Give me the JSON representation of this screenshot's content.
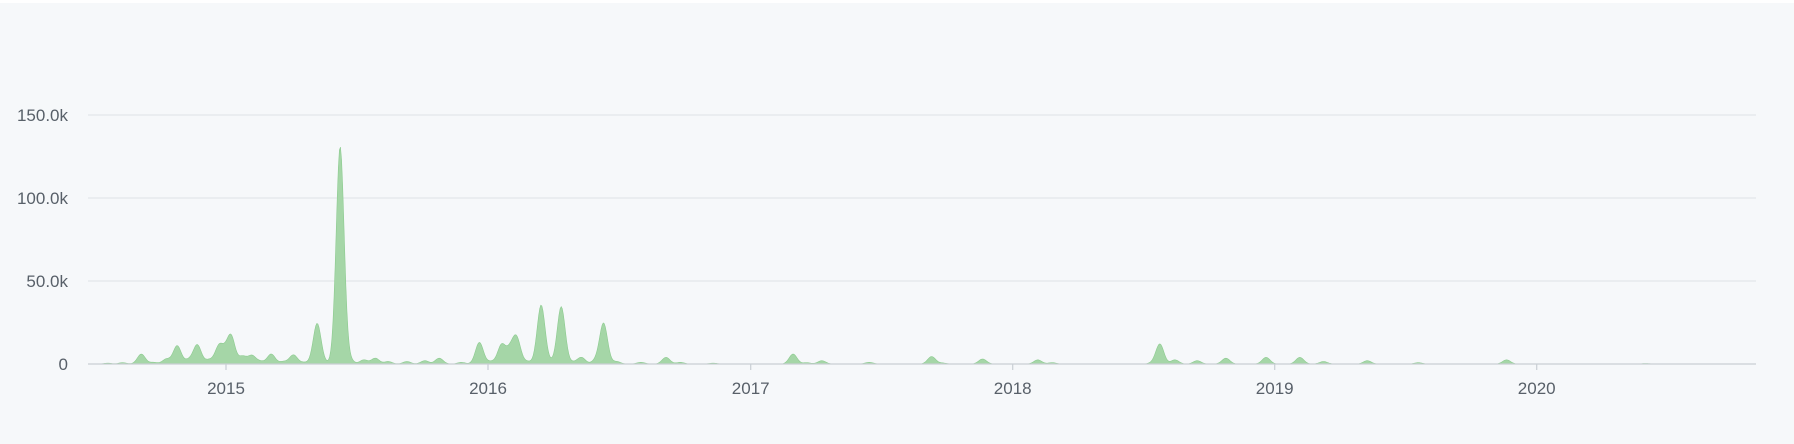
{
  "chart_data": {
    "type": "area",
    "xlabel": "",
    "ylabel": "",
    "x_range": [
      "2014-07-01",
      "2020-11-01"
    ],
    "ylim": [
      0,
      150000
    ],
    "y_ticks": [
      {
        "value": 0,
        "label": "0"
      },
      {
        "value": 50000,
        "label": "50.0k"
      },
      {
        "value": 100000,
        "label": "100.0k"
      },
      {
        "value": 150000,
        "label": "150.0k"
      }
    ],
    "x_ticks": [
      {
        "value": "2015-01-01",
        "label": "2015"
      },
      {
        "value": "2016-01-01",
        "label": "2016"
      },
      {
        "value": "2017-01-01",
        "label": "2017"
      },
      {
        "value": "2018-01-01",
        "label": "2018"
      },
      {
        "value": "2019-01-01",
        "label": "2019"
      },
      {
        "value": "2020-01-01",
        "label": "2020"
      }
    ],
    "grid": true,
    "series": [
      {
        "color": "#a5d6a7",
        "points": [
          [
            "2014-07-20",
            500
          ],
          [
            "2014-08-10",
            800
          ],
          [
            "2014-09-05",
            6000
          ],
          [
            "2014-09-22",
            1000
          ],
          [
            "2014-10-10",
            3000
          ],
          [
            "2014-10-25",
            11000
          ],
          [
            "2014-11-10",
            2500
          ],
          [
            "2014-11-22",
            11500
          ],
          [
            "2014-12-08",
            2500
          ],
          [
            "2014-12-22",
            10000
          ],
          [
            "2014-12-30",
            5000
          ],
          [
            "2015-01-08",
            16500
          ],
          [
            "2015-01-24",
            4500
          ],
          [
            "2015-02-06",
            5000
          ],
          [
            "2015-02-18",
            1500
          ],
          [
            "2015-03-05",
            6000
          ],
          [
            "2015-03-22",
            1500
          ],
          [
            "2015-04-05",
            5500
          ],
          [
            "2015-04-20",
            1000
          ],
          [
            "2015-05-08",
            24500
          ],
          [
            "2015-05-22",
            500
          ],
          [
            "2015-06-09",
            131000
          ],
          [
            "2015-06-22",
            2500
          ],
          [
            "2015-07-12",
            2500
          ],
          [
            "2015-07-28",
            3500
          ],
          [
            "2015-08-15",
            1500
          ],
          [
            "2015-09-10",
            1500
          ],
          [
            "2015-10-05",
            2000
          ],
          [
            "2015-10-25",
            3500
          ],
          [
            "2015-11-25",
            1000
          ],
          [
            "2015-12-20",
            13000
          ],
          [
            "2016-01-05",
            1500
          ],
          [
            "2016-01-20",
            11500
          ],
          [
            "2016-02-01",
            8000
          ],
          [
            "2016-02-10",
            15000
          ],
          [
            "2016-02-25",
            1500
          ],
          [
            "2016-03-15",
            35500
          ],
          [
            "2016-03-28",
            1000
          ],
          [
            "2016-04-12",
            34500
          ],
          [
            "2016-04-28",
            1000
          ],
          [
            "2016-05-10",
            4000
          ],
          [
            "2016-05-30",
            2000
          ],
          [
            "2016-06-10",
            24500
          ],
          [
            "2016-06-28",
            1500
          ],
          [
            "2016-08-01",
            1000
          ],
          [
            "2016-09-05",
            4000
          ],
          [
            "2016-09-25",
            1000
          ],
          [
            "2016-11-10",
            500
          ],
          [
            "2017-03-01",
            6000
          ],
          [
            "2017-03-20",
            800
          ],
          [
            "2017-04-10",
            2000
          ],
          [
            "2017-06-15",
            1000
          ],
          [
            "2017-09-10",
            4500
          ],
          [
            "2017-09-25",
            600
          ],
          [
            "2017-11-20",
            3000
          ],
          [
            "2018-02-05",
            2500
          ],
          [
            "2018-02-25",
            800
          ],
          [
            "2018-07-15",
            700
          ],
          [
            "2018-07-25",
            12000
          ],
          [
            "2018-08-15",
            2500
          ],
          [
            "2018-09-15",
            2000
          ],
          [
            "2018-10-25",
            3500
          ],
          [
            "2018-12-20",
            4000
          ],
          [
            "2019-02-05",
            4000
          ],
          [
            "2019-03-10",
            1500
          ],
          [
            "2019-05-10",
            2000
          ],
          [
            "2019-07-20",
            800
          ],
          [
            "2019-11-20",
            2500
          ],
          [
            "2020-06-01",
            300
          ]
        ]
      }
    ]
  }
}
